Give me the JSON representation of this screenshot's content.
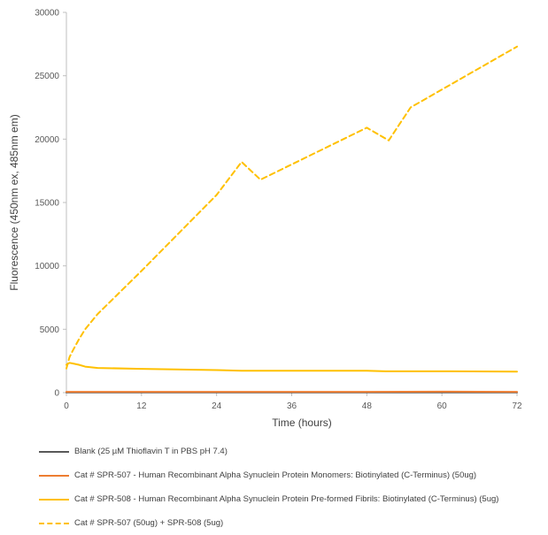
{
  "chart_data": {
    "type": "line",
    "title": "",
    "xlabel": "Time (hours)",
    "ylabel": "Fluorescence (450nm ex, 485nm em)",
    "xlim": [
      0,
      72
    ],
    "ylim": [
      0,
      30000
    ],
    "x_ticks": [
      0,
      12,
      24,
      36,
      48,
      60,
      72
    ],
    "y_ticks": [
      0,
      5000,
      10000,
      15000,
      20000,
      25000,
      30000
    ],
    "grid": false,
    "legend_position": "bottom",
    "series": [
      {
        "name": "Blank (25 µM Thioflavin T in PBS pH 7.4)",
        "color": "#595959",
        "dash": "solid",
        "x": [
          0,
          12,
          24,
          36,
          48,
          60,
          72
        ],
        "y": [
          20,
          20,
          20,
          20,
          20,
          20,
          20
        ]
      },
      {
        "name": "Cat # SPR-507 - Human Recombinant Alpha Synuclein Protein Monomers: Biotinylated (C-Terminus) (50ug)",
        "color": "#ED7D31",
        "dash": "solid",
        "x": [
          0,
          12,
          24,
          36,
          48,
          54,
          60,
          66,
          72
        ],
        "y": [
          60,
          60,
          60,
          60,
          60,
          70,
          80,
          70,
          60
        ]
      },
      {
        "name": "Cat # SPR-508 - Human Recombinant Alpha Synuclein Protein Pre-formed Fibrils: Biotinylated (C-Terminus) (5ug)",
        "color": "#FFC000",
        "dash": "solid",
        "x": [
          0,
          0.5,
          1,
          2,
          3,
          5,
          12,
          24,
          28,
          36,
          48,
          51,
          60,
          72
        ],
        "y": [
          2200,
          2350,
          2300,
          2200,
          2050,
          1950,
          1880,
          1780,
          1720,
          1720,
          1720,
          1680,
          1680,
          1660
        ]
      },
      {
        "name": "Cat # SPR-507 (50ug) +  SPR-508 (5ug)",
        "color": "#FFC000",
        "dash": "dashed",
        "x": [
          0,
          0.5,
          1,
          2,
          3,
          5,
          12,
          24,
          28,
          31,
          48,
          51.5,
          55,
          72
        ],
        "y": [
          1900,
          2800,
          3300,
          4200,
          5000,
          6200,
          9600,
          15600,
          18200,
          16800,
          20900,
          19900,
          22500,
          27300
        ]
      }
    ]
  }
}
